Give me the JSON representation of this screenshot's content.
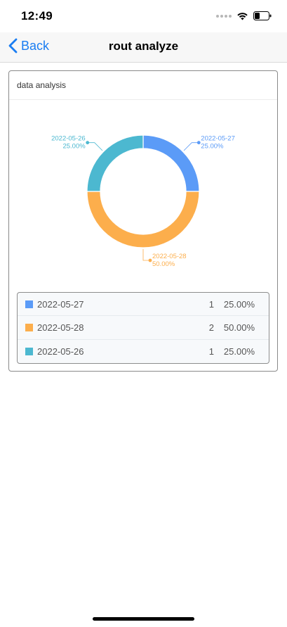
{
  "status_bar": {
    "time": "12:49",
    "icons": [
      "signal-dots-icon",
      "wifi-icon",
      "battery-icon"
    ]
  },
  "nav": {
    "back_label": "Back",
    "title": "rout analyze",
    "accent": "#1a7df2"
  },
  "card": {
    "title": "data analysis"
  },
  "chart_data": {
    "type": "pie",
    "style": "donut",
    "series": [
      {
        "label": "2022-05-27",
        "count": 1,
        "percent": "25.00%",
        "value": 25,
        "color": "#5b9bf7"
      },
      {
        "label": "2022-05-28",
        "count": 2,
        "percent": "50.00%",
        "value": 50,
        "color": "#fcae4c"
      },
      {
        "label": "2022-05-26",
        "count": 1,
        "percent": "25.00%",
        "value": 25,
        "color": "#4cb8d0"
      }
    ]
  },
  "legend": {
    "rows": [
      {
        "label": "2022-05-27",
        "count": "1",
        "percent": "25.00%",
        "color": "#5b9bf7"
      },
      {
        "label": "2022-05-28",
        "count": "2",
        "percent": "50.00%",
        "color": "#fcae4c"
      },
      {
        "label": "2022-05-26",
        "count": "1",
        "percent": "25.00%",
        "color": "#4cb8d0"
      }
    ]
  }
}
